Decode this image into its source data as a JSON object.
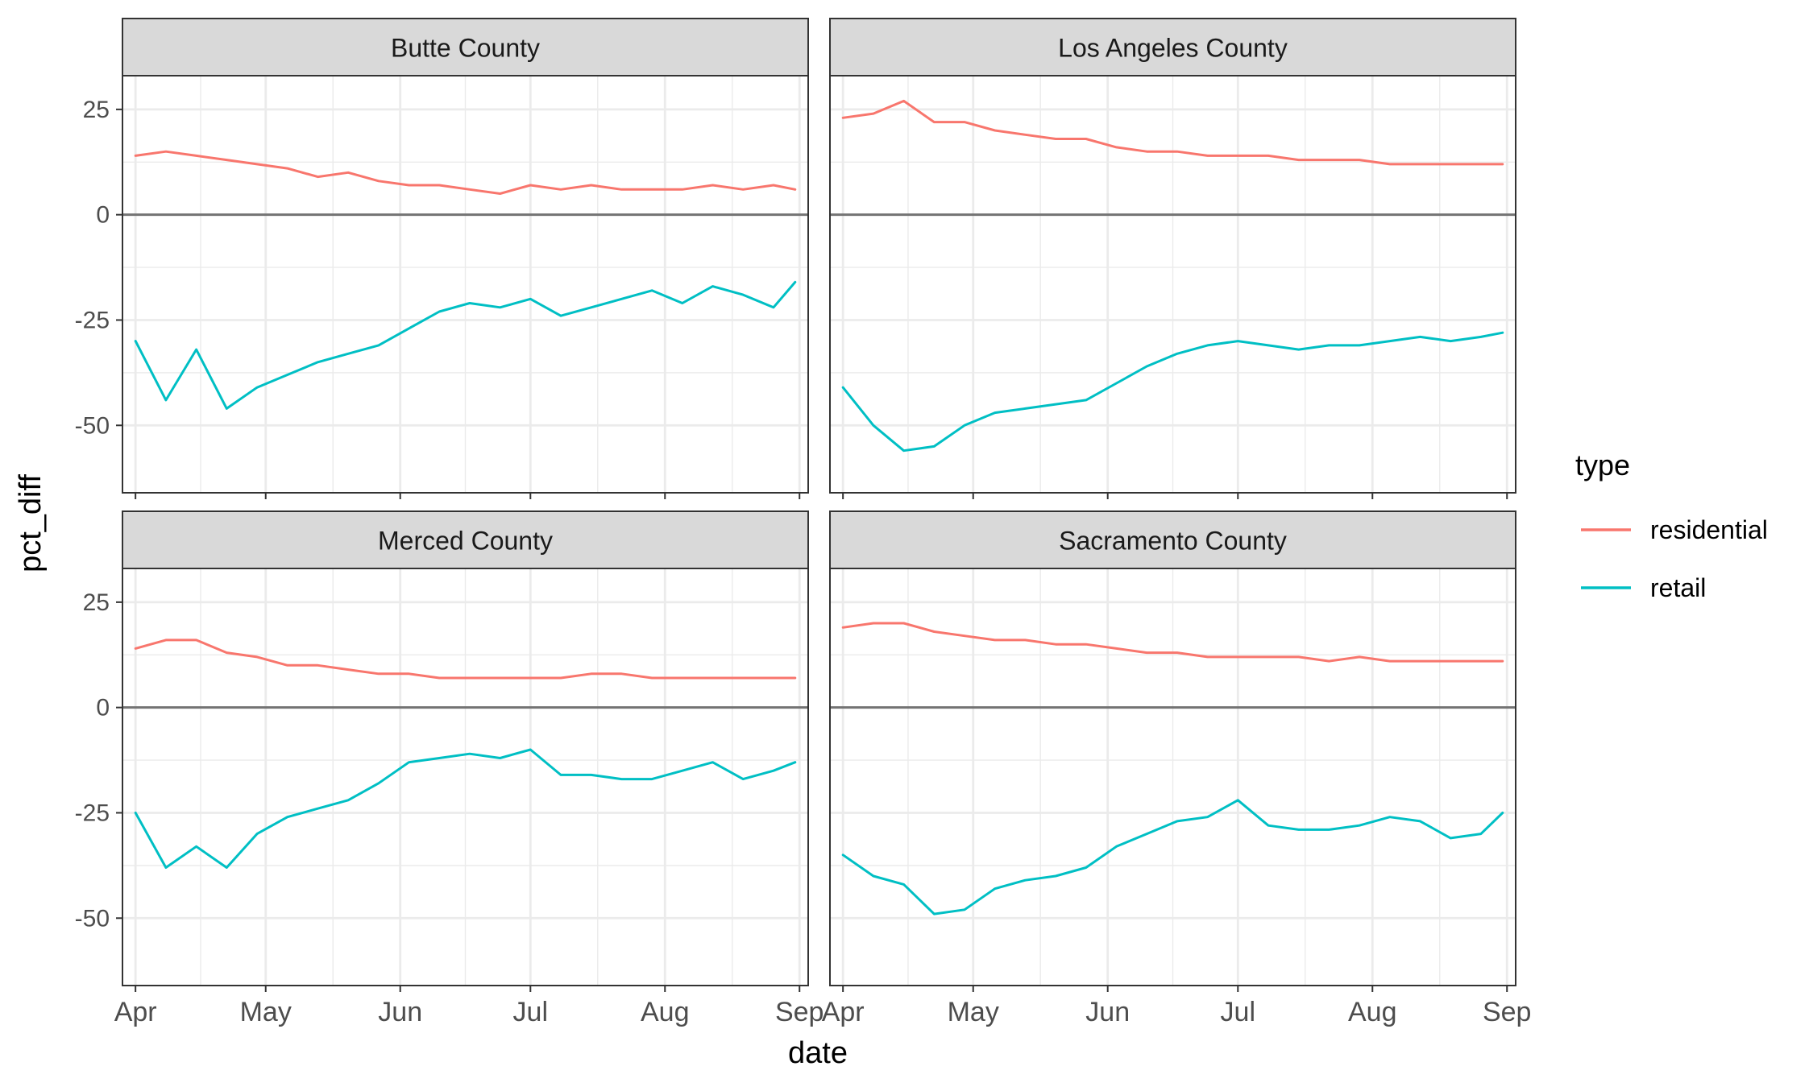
{
  "chart_data": {
    "type": "line",
    "facet_layout": "2x2",
    "xlabel": "date",
    "ylabel": "pct_diff",
    "x_ticks": [
      "Apr",
      "May",
      "Jun",
      "Jul",
      "Aug",
      "Sep"
    ],
    "x_tick_dates": [
      "2020-04-01",
      "2020-05-01",
      "2020-06-01",
      "2020-07-01",
      "2020-08-01",
      "2020-09-01"
    ],
    "xlim": [
      "2020-03-29",
      "2020-09-03"
    ],
    "y_ticks": [
      25,
      0,
      -25,
      -50
    ],
    "ylim": [
      -66,
      33
    ],
    "zero_line": true,
    "grid": true,
    "legend": {
      "title": "type",
      "placement": "right",
      "entries": [
        {
          "name": "residential",
          "color": "#F8766D"
        },
        {
          "name": "retail",
          "color": "#00BFC4"
        }
      ]
    },
    "colors": {
      "residential": "#F8766D",
      "retail": "#00BFC4",
      "strip_fill": "#D9D9D9",
      "grid": "#EBEBEB"
    },
    "x_dates": [
      "2020-04-01",
      "2020-04-08",
      "2020-04-15",
      "2020-04-22",
      "2020-04-29",
      "2020-05-06",
      "2020-05-13",
      "2020-05-20",
      "2020-05-27",
      "2020-06-03",
      "2020-06-10",
      "2020-06-17",
      "2020-06-24",
      "2020-07-01",
      "2020-07-08",
      "2020-07-15",
      "2020-07-22",
      "2020-07-29",
      "2020-08-05",
      "2020-08-12",
      "2020-08-19",
      "2020-08-26",
      "2020-08-31"
    ],
    "panels": [
      {
        "name": "Butte County",
        "series": [
          {
            "name": "residential",
            "values": [
              14,
              15,
              14,
              13,
              12,
              11,
              9,
              10,
              8,
              7,
              7,
              6,
              5,
              7,
              6,
              7,
              6,
              6,
              6,
              7,
              6,
              7,
              6
            ]
          },
          {
            "name": "retail",
            "values": [
              -30,
              -44,
              -32,
              -46,
              -41,
              -38,
              -35,
              -33,
              -31,
              -27,
              -23,
              -21,
              -22,
              -20,
              -24,
              -22,
              -20,
              -18,
              -21,
              -17,
              -19,
              -22,
              -16
            ]
          }
        ]
      },
      {
        "name": "Los Angeles County",
        "series": [
          {
            "name": "residential",
            "values": [
              23,
              24,
              27,
              22,
              22,
              20,
              19,
              18,
              18,
              16,
              15,
              15,
              14,
              14,
              14,
              13,
              13,
              13,
              12,
              12,
              12,
              12,
              12
            ]
          },
          {
            "name": "retail",
            "values": [
              -41,
              -50,
              -56,
              -55,
              -50,
              -47,
              -46,
              -45,
              -44,
              -40,
              -36,
              -33,
              -31,
              -30,
              -31,
              -32,
              -31,
              -31,
              -30,
              -29,
              -30,
              -29,
              -28
            ]
          }
        ]
      },
      {
        "name": "Merced County",
        "series": [
          {
            "name": "residential",
            "values": [
              14,
              16,
              16,
              13,
              12,
              10,
              10,
              9,
              8,
              8,
              7,
              7,
              7,
              7,
              7,
              8,
              8,
              7,
              7,
              7,
              7,
              7,
              7
            ]
          },
          {
            "name": "retail",
            "values": [
              -25,
              -38,
              -33,
              -38,
              -30,
              -26,
              -24,
              -22,
              -18,
              -13,
              -12,
              -11,
              -12,
              -10,
              -16,
              -16,
              -17,
              -17,
              -15,
              -13,
              -17,
              -15,
              -13
            ]
          }
        ]
      },
      {
        "name": "Sacramento County",
        "series": [
          {
            "name": "residential",
            "values": [
              19,
              20,
              20,
              18,
              17,
              16,
              16,
              15,
              15,
              14,
              13,
              13,
              12,
              12,
              12,
              12,
              11,
              12,
              11,
              11,
              11,
              11,
              11
            ]
          },
          {
            "name": "retail",
            "values": [
              -35,
              -40,
              -42,
              -49,
              -48,
              -43,
              -41,
              -40,
              -38,
              -33,
              -30,
              -27,
              -26,
              -22,
              -28,
              -29,
              -29,
              -28,
              -26,
              -27,
              -31,
              -30,
              -25
            ]
          }
        ]
      }
    ]
  }
}
